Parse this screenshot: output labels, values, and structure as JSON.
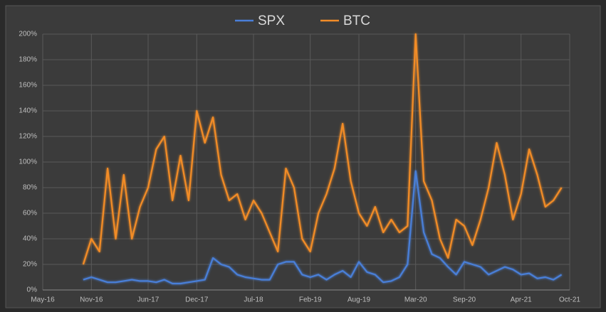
{
  "chart_data": {
    "type": "line",
    "x": [
      "2016-10",
      "2016-11",
      "2016-12",
      "2017-01",
      "2017-02",
      "2017-03",
      "2017-04",
      "2017-05",
      "2017-06",
      "2017-07",
      "2017-08",
      "2017-09",
      "2017-10",
      "2017-11",
      "2017-12",
      "2018-01",
      "2018-02",
      "2018-03",
      "2018-04",
      "2018-05",
      "2018-06",
      "2018-07",
      "2018-08",
      "2018-09",
      "2018-10",
      "2018-11",
      "2018-12",
      "2019-01",
      "2019-02",
      "2019-03",
      "2019-04",
      "2019-05",
      "2019-06",
      "2019-07",
      "2019-08",
      "2019-09",
      "2019-10",
      "2019-11",
      "2019-12",
      "2020-01",
      "2020-02",
      "2020-03",
      "2020-04",
      "2020-05",
      "2020-06",
      "2020-07",
      "2020-08",
      "2020-09",
      "2020-10",
      "2020-11",
      "2020-12",
      "2021-01",
      "2021-02",
      "2021-03",
      "2021-04",
      "2021-05",
      "2021-06",
      "2021-07",
      "2021-08",
      "2021-09"
    ],
    "series": [
      {
        "name": "SPX",
        "color": "#4a7fd8",
        "values": [
          8,
          10,
          8,
          6,
          6,
          7,
          8,
          7,
          7,
          6,
          8,
          5,
          5,
          6,
          7,
          8,
          25,
          20,
          18,
          12,
          10,
          9,
          8,
          8,
          20,
          22,
          22,
          12,
          10,
          12,
          8,
          12,
          15,
          10,
          22,
          14,
          12,
          6,
          7,
          10,
          20,
          93,
          45,
          28,
          25,
          18,
          12,
          22,
          20,
          18,
          12,
          15,
          18,
          16,
          12,
          13,
          9,
          10,
          8,
          12
        ]
      },
      {
        "name": "BTC",
        "color": "#f28c28",
        "values": [
          20,
          40,
          30,
          95,
          40,
          90,
          40,
          65,
          80,
          110,
          120,
          70,
          105,
          70,
          140,
          115,
          135,
          90,
          70,
          75,
          55,
          70,
          60,
          45,
          30,
          95,
          80,
          40,
          30,
          60,
          75,
          95,
          130,
          85,
          60,
          50,
          65,
          45,
          55,
          45,
          50,
          200,
          85,
          70,
          40,
          25,
          55,
          50,
          35,
          55,
          80,
          115,
          90,
          55,
          75,
          110,
          90,
          65,
          70,
          80
        ]
      }
    ],
    "xlim": [
      "2016-05",
      "2021-10"
    ],
    "xticks": [
      {
        "value": "2016-05",
        "label": "May-16"
      },
      {
        "value": "2016-11",
        "label": "Nov-16"
      },
      {
        "value": "2017-06",
        "label": "Jun-17"
      },
      {
        "value": "2017-12",
        "label": "Dec-17"
      },
      {
        "value": "2018-07",
        "label": "Jul-18"
      },
      {
        "value": "2019-02",
        "label": "Feb-19"
      },
      {
        "value": "2019-08",
        "label": "Aug-19"
      },
      {
        "value": "2020-03",
        "label": "Mar-20"
      },
      {
        "value": "2020-09",
        "label": "Sep-20"
      },
      {
        "value": "2021-04",
        "label": "Apr-21"
      },
      {
        "value": "2021-10",
        "label": "Oct-21"
      }
    ],
    "ylim": [
      0,
      200
    ],
    "yticks": [
      {
        "value": 0,
        "label": "0%"
      },
      {
        "value": 20,
        "label": "20%"
      },
      {
        "value": 40,
        "label": "40%"
      },
      {
        "value": 60,
        "label": "60%"
      },
      {
        "value": 80,
        "label": "80%"
      },
      {
        "value": 100,
        "label": "100%"
      },
      {
        "value": 120,
        "label": "120%"
      },
      {
        "value": 140,
        "label": "140%"
      },
      {
        "value": 160,
        "label": "160%"
      },
      {
        "value": 180,
        "label": "180%"
      },
      {
        "value": 200,
        "label": "200%"
      }
    ],
    "grid": true,
    "legend": "top"
  }
}
